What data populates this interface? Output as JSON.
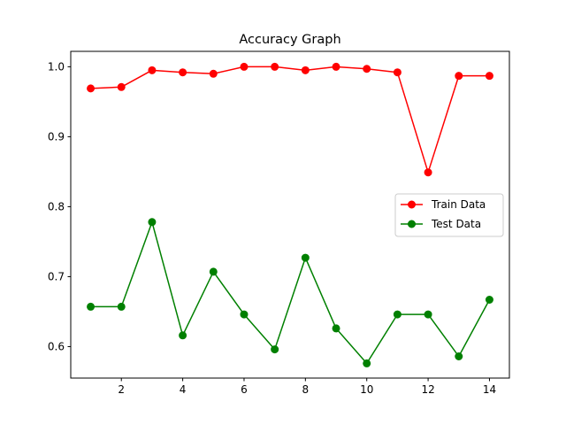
{
  "chart_data": {
    "type": "line",
    "title": "Accuracy Graph",
    "xlabel": "",
    "ylabel": "",
    "xlim": [
      0.35,
      14.65
    ],
    "ylim": [
      0.555,
      1.022
    ],
    "x_ticks": [
      2,
      4,
      6,
      8,
      10,
      12,
      14
    ],
    "y_ticks": [
      0.6,
      0.7,
      0.8,
      0.9,
      1.0
    ],
    "y_tick_labels": [
      "0.6",
      "0.7",
      "0.8",
      "0.9",
      "1.0"
    ],
    "grid": false,
    "legend_position": "center-right",
    "x": [
      1,
      2,
      3,
      4,
      5,
      6,
      7,
      8,
      9,
      10,
      11,
      12,
      13,
      14
    ],
    "series": [
      {
        "name": "Train Data",
        "color": "#ff0000",
        "marker": "circle",
        "values": [
          0.969,
          0.971,
          0.995,
          0.992,
          0.99,
          1.0,
          1.0,
          0.995,
          1.0,
          0.997,
          0.992,
          0.849,
          0.987,
          0.987
        ]
      },
      {
        "name": "Test Data",
        "color": "#008000",
        "marker": "circle",
        "values": [
          0.657,
          0.657,
          0.778,
          0.616,
          0.707,
          0.646,
          0.596,
          0.727,
          0.626,
          0.576,
          0.646,
          0.646,
          0.586,
          0.667
        ]
      }
    ]
  }
}
